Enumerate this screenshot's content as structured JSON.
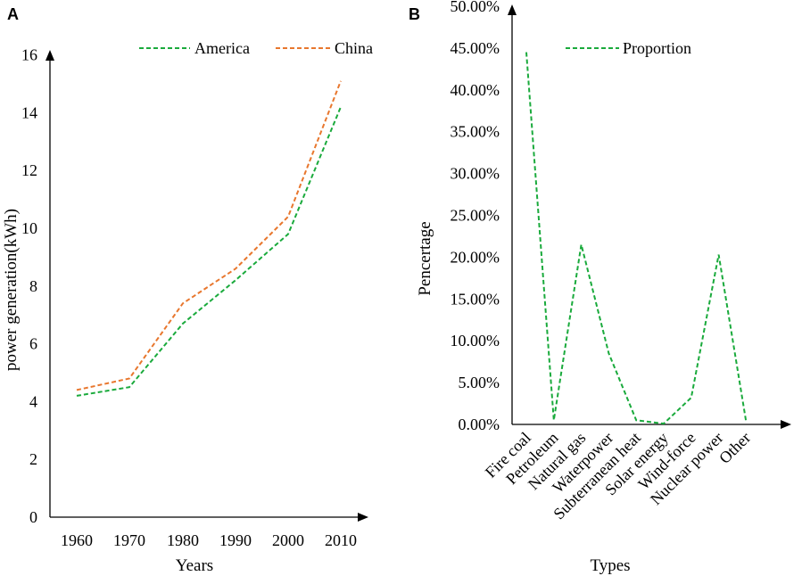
{
  "colors": {
    "america": "#1aaa3c",
    "china": "#e8772e",
    "proportion": "#1aaa3c",
    "axis": "#000000"
  },
  "chart_data": [
    {
      "panel_label": "A",
      "type": "line",
      "title": "",
      "xlabel": "Years",
      "ylabel": "power generation(kWh)",
      "categories": [
        "1960",
        "1970",
        "1980",
        "1990",
        "2000",
        "2010"
      ],
      "yticks": [
        "0",
        "2",
        "4",
        "6",
        "8",
        "10",
        "12",
        "14",
        "16"
      ],
      "ylim": [
        0,
        16
      ],
      "legend_position": "top",
      "series": [
        {
          "name": "America",
          "color_key": "america",
          "values": [
            4.2,
            4.5,
            6.7,
            8.2,
            9.8,
            14.2
          ]
        },
        {
          "name": "China",
          "color_key": "china",
          "values": [
            4.4,
            4.8,
            7.4,
            8.6,
            10.4,
            15.1
          ]
        }
      ]
    },
    {
      "panel_label": "B",
      "type": "line",
      "title": "",
      "xlabel": "Types",
      "ylabel": "Pencertage",
      "categories": [
        "Fire coal",
        "Petroleum",
        "Natural gas",
        "Waterpower",
        "Subterranean heat",
        "Solar energy",
        "Wind-force",
        "Nuclear power",
        "Other"
      ],
      "yticks": [
        "0.00%",
        "5.00%",
        "10.00%",
        "15.00%",
        "20.00%",
        "25.00%",
        "30.00%",
        "35.00%",
        "40.00%",
        "45.00%",
        "50.00%"
      ],
      "ylim": [
        0,
        50
      ],
      "legend_position": "top",
      "series": [
        {
          "name": "Proportion",
          "color_key": "proportion",
          "values": [
            44.5,
            0.5,
            21.5,
            8.5,
            0.5,
            0.1,
            3.2,
            20.3,
            0.3
          ]
        }
      ]
    }
  ]
}
